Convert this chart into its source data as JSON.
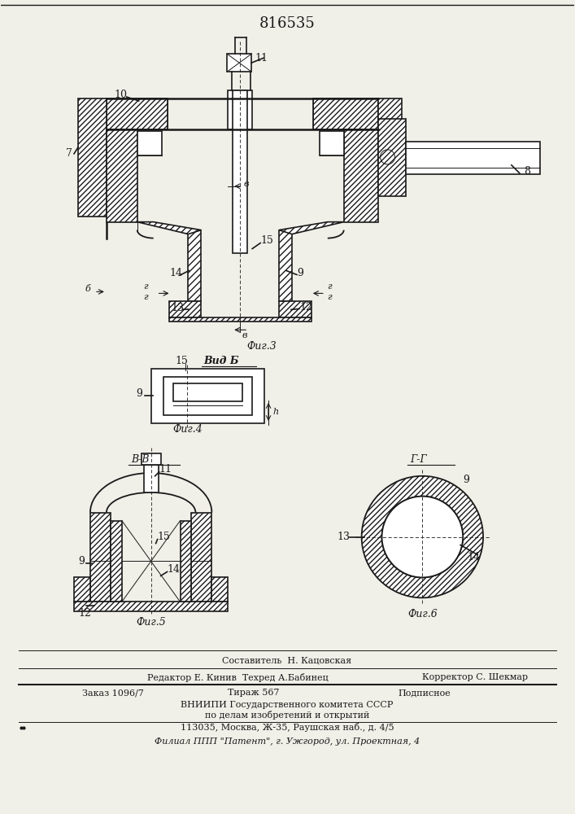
{
  "patent_number": "816535",
  "bg_color": "#f0efe8",
  "line_color": "#1a1a1a",
  "fig3_caption": "Фиг.3",
  "fig4_caption": "Фиг.4",
  "fig5_caption": "Фиг.5",
  "fig6_caption": "Фиг.6",
  "vid_b_label": "Вид Б",
  "section_bb": "В-В",
  "section_gg": "Г-Г",
  "footer_line1": "Составитель  Н. Кацовская",
  "footer_line2a": "Редактор Е. Кинив  Техред А.Бабинец",
  "footer_line2b": "Корректор С. Шекмар",
  "footer_line3a": "Заказ 1096/7",
  "footer_line3b": "Тираж 567",
  "footer_line3c": "Подписное",
  "footer_line4": "ВНИИПИ Государственного комитета СССР",
  "footer_line5": "по делам изобретений и открытий",
  "footer_line6": "113035, Москва, Ж-35, Раушская наб., д. 4/5",
  "footer_line7": "Филиал ППП \"Патент\", г. Ужгород, ул. Проектная, 4"
}
